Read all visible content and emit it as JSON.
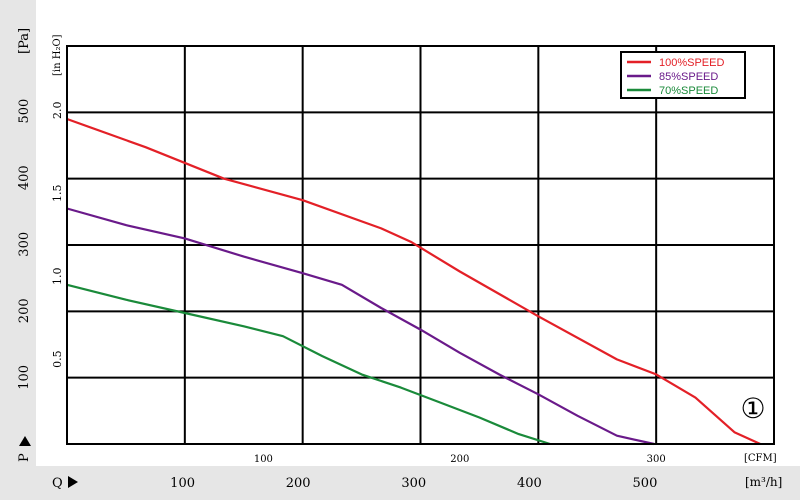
{
  "chart_data": {
    "type": "line",
    "title": "",
    "series": [
      {
        "name": "100%SPEED",
        "color": "#e32027",
        "points": [
          [
            0,
            1.96
          ],
          [
            40,
            1.79
          ],
          [
            80,
            1.6
          ],
          [
            120,
            1.47
          ],
          [
            160,
            1.3
          ],
          [
            175,
            1.22
          ],
          [
            200,
            1.04
          ],
          [
            240,
            0.77
          ],
          [
            280,
            0.51
          ],
          [
            300,
            0.42
          ],
          [
            320,
            0.28
          ],
          [
            340,
            0.07
          ],
          [
            353,
            0.0
          ]
        ]
      },
      {
        "name": "85%SPEED",
        "color": "#6a1a8a",
        "points": [
          [
            0,
            1.42
          ],
          [
            30,
            1.32
          ],
          [
            60,
            1.24
          ],
          [
            90,
            1.13
          ],
          [
            120,
            1.03
          ],
          [
            140,
            0.96
          ],
          [
            160,
            0.82
          ],
          [
            180,
            0.69
          ],
          [
            200,
            0.55
          ],
          [
            220,
            0.42
          ],
          [
            240,
            0.3
          ],
          [
            260,
            0.17
          ],
          [
            280,
            0.05
          ],
          [
            299,
            0.0
          ]
        ]
      },
      {
        "name": "70%SPEED",
        "color": "#1a8a3a",
        "points": [
          [
            0,
            0.96
          ],
          [
            30,
            0.87
          ],
          [
            60,
            0.79
          ],
          [
            90,
            0.71
          ],
          [
            110,
            0.65
          ],
          [
            130,
            0.53
          ],
          [
            150,
            0.42
          ],
          [
            170,
            0.34
          ],
          [
            190,
            0.25
          ],
          [
            210,
            0.16
          ],
          [
            230,
            0.06
          ],
          [
            246,
            0.0
          ]
        ]
      }
    ],
    "x_cfm": {
      "unit_label": "[CFM]",
      "range": [
        0,
        360
      ],
      "ticks": [
        100,
        200,
        300
      ]
    },
    "x_m3h": {
      "axis_letter": "Q",
      "unit_label": "[m³/h]",
      "ticks": [
        100,
        200,
        300,
        400,
        500
      ]
    },
    "y_inH2O": {
      "unit_label": "[in H₂O]",
      "range": [
        0,
        2.4
      ],
      "ticks": [
        "0.5",
        "1.0",
        "1.5",
        "2.0"
      ]
    },
    "y_pa": {
      "axis_letter": "P",
      "unit_label": "[Pa]",
      "ticks": [
        100,
        200,
        300,
        400,
        500
      ]
    },
    "grid": true,
    "legend_position": "top-right",
    "annotation": "①"
  }
}
